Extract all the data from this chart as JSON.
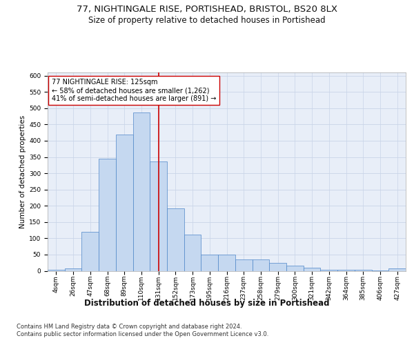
{
  "title1": "77, NIGHTINGALE RISE, PORTISHEAD, BRISTOL, BS20 8LX",
  "title2": "Size of property relative to detached houses in Portishead",
  "xlabel": "Distribution of detached houses by size in Portishead",
  "ylabel": "Number of detached properties",
  "bar_color": "#c5d8f0",
  "bar_edge_color": "#4d86c8",
  "categories": [
    "4sqm",
    "26sqm",
    "47sqm",
    "68sqm",
    "89sqm",
    "110sqm",
    "131sqm",
    "152sqm",
    "173sqm",
    "195sqm",
    "216sqm",
    "237sqm",
    "258sqm",
    "279sqm",
    "300sqm",
    "321sqm",
    "342sqm",
    "364sqm",
    "385sqm",
    "406sqm",
    "427sqm"
  ],
  "values": [
    4,
    8,
    120,
    345,
    420,
    487,
    337,
    193,
    111,
    50,
    50,
    35,
    35,
    25,
    16,
    10,
    4,
    3,
    4,
    2,
    7
  ],
  "vline_x_index": 6,
  "vline_color": "#cc0000",
  "annotation_text": "77 NIGHTINGALE RISE: 125sqm\n← 58% of detached houses are smaller (1,262)\n41% of semi-detached houses are larger (891) →",
  "annotation_box_color": "#ffffff",
  "annotation_box_edge": "#cc0000",
  "ylim": [
    0,
    610
  ],
  "yticks": [
    0,
    50,
    100,
    150,
    200,
    250,
    300,
    350,
    400,
    450,
    500,
    550,
    600
  ],
  "grid_color": "#c8d4e8",
  "background_color": "#e8eef8",
  "footer1": "Contains HM Land Registry data © Crown copyright and database right 2024.",
  "footer2": "Contains public sector information licensed under the Open Government Licence v3.0.",
  "title1_fontsize": 9.5,
  "title2_fontsize": 8.5,
  "xlabel_fontsize": 8.5,
  "ylabel_fontsize": 7.5,
  "tick_fontsize": 6.5,
  "annotation_fontsize": 7.0,
  "footer_fontsize": 6.0
}
